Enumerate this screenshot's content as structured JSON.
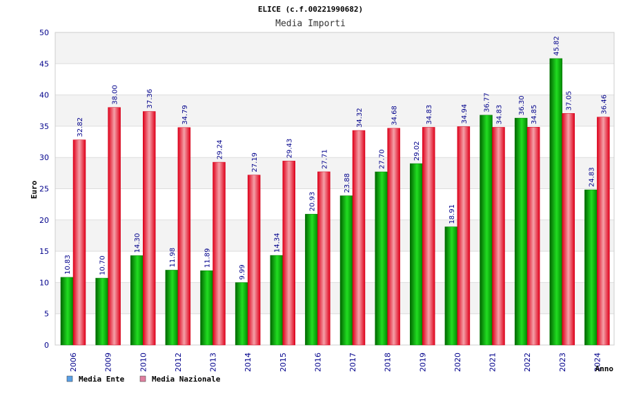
{
  "chart_data": {
    "type": "bar",
    "title": "ELICE (c.f.00221990682)",
    "subtitle": "Media Importi",
    "xlabel": "Anno",
    "ylabel": "Euro",
    "ylim": [
      0,
      50
    ],
    "yticks": [
      0,
      5,
      10,
      15,
      20,
      25,
      30,
      35,
      40,
      45,
      50
    ],
    "grid": true,
    "legend_position": "bottom-left",
    "categories": [
      "2006",
      "2009",
      "2010",
      "2012",
      "2013",
      "2014",
      "2015",
      "2016",
      "2017",
      "2018",
      "2019",
      "2020",
      "2021",
      "2022",
      "2023",
      "2024"
    ],
    "series": [
      {
        "name": "Media Ente",
        "color": "#00aa00",
        "legend_color": "#5aa0e6",
        "values": [
          10.83,
          10.7,
          14.3,
          11.98,
          11.89,
          9.99,
          14.34,
          20.93,
          23.88,
          27.7,
          29.02,
          18.91,
          36.77,
          36.3,
          45.82,
          24.83
        ],
        "labels": [
          "10.83",
          "10.70",
          "14.30",
          "11.98",
          "11.89",
          "9.99",
          "14.34",
          "20.93",
          "23.88",
          "27.70",
          "29.02",
          "18.91",
          "36.77",
          "36.30",
          "45.82",
          "24.83"
        ]
      },
      {
        "name": "Media Nazionale",
        "color": "#e8102a",
        "legend_color": "#e080a0",
        "values": [
          32.82,
          38.0,
          37.36,
          34.79,
          29.24,
          27.19,
          29.43,
          27.71,
          34.32,
          34.68,
          34.83,
          34.94,
          34.83,
          34.85,
          37.05,
          36.46
        ],
        "labels": [
          "32.82",
          "38.00",
          "37.36",
          "34.79",
          "29.24",
          "27.19",
          "29.43",
          "27.71",
          "34.32",
          "34.68",
          "34.83",
          "34.94",
          "34.83",
          "34.85",
          "37.05",
          "36.46"
        ]
      }
    ]
  }
}
